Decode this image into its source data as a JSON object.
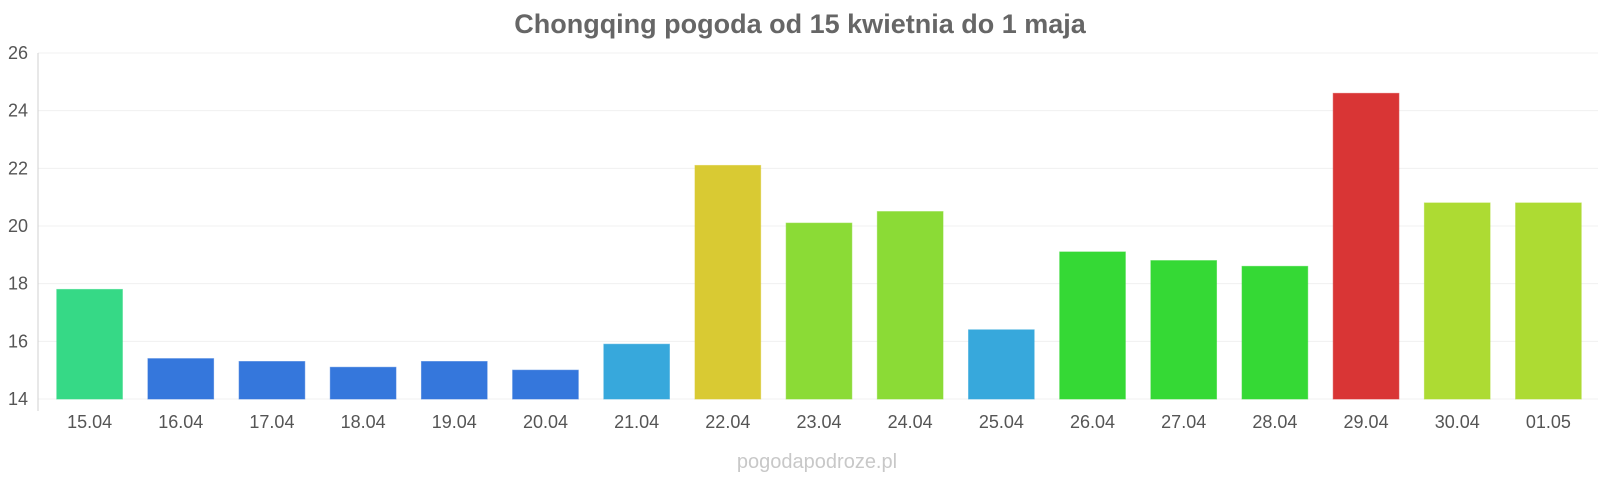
{
  "chart_data": {
    "type": "bar",
    "title": "Chongqing pogoda od 15 kwietnia do 1 maja",
    "xlabel": "",
    "ylabel": "",
    "ylim": [
      14,
      26
    ],
    "yticks": [
      "14",
      "16",
      "18",
      "20",
      "22",
      "24",
      "26"
    ],
    "grid": true,
    "legend": "none",
    "categories": [
      "15.04",
      "16.04",
      "17.04",
      "18.04",
      "19.04",
      "20.04",
      "21.04",
      "22.04",
      "23.04",
      "24.04",
      "25.04",
      "26.04",
      "27.04",
      "28.04",
      "29.04",
      "30.04",
      "01.05"
    ],
    "values": [
      17.8,
      15.4,
      15.3,
      15.1,
      15.3,
      15.0,
      15.9,
      22.1,
      20.1,
      20.5,
      16.4,
      19.1,
      18.8,
      18.6,
      24.6,
      20.8,
      20.8
    ],
    "colors": [
      "#36d986",
      "#3577dc",
      "#3577dc",
      "#3577dc",
      "#3577dc",
      "#3577dc",
      "#37a8dc",
      "#d9ca33",
      "#8bdb36",
      "#8bdb36",
      "#37a8dc",
      "#35d935",
      "#35d935",
      "#35d935",
      "#d93535",
      "#addb33",
      "#addb33"
    ]
  },
  "watermark": "pogodapodroze.pl"
}
